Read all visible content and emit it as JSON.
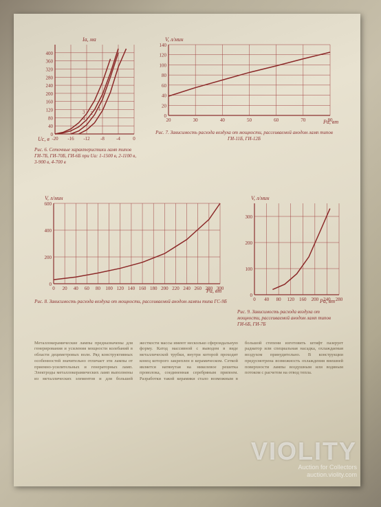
{
  "fig6": {
    "type": "line-multi",
    "y_label": "Ia, ма",
    "x_label": "Uc, в",
    "x_ticks": [
      -20,
      -16,
      -12,
      -8,
      -4,
      0
    ],
    "y_ticks": [
      0,
      40,
      80,
      120,
      160,
      200,
      240,
      280,
      320,
      360,
      400
    ],
    "y_max": 440,
    "curves": [
      {
        "label": "1",
        "pts": [
          [
            -14,
            0
          ],
          [
            -12,
            20
          ],
          [
            -10,
            55
          ],
          [
            -8,
            115
          ],
          [
            -6,
            205
          ],
          [
            -4,
            330
          ],
          [
            -2,
            420
          ]
        ]
      },
      {
        "label": "2",
        "pts": [
          [
            -16,
            0
          ],
          [
            -14,
            15
          ],
          [
            -12,
            45
          ],
          [
            -10,
            95
          ],
          [
            -8,
            170
          ],
          [
            -6,
            280
          ],
          [
            -4,
            400
          ]
        ]
      },
      {
        "label": "3",
        "pts": [
          [
            -20,
            0
          ],
          [
            -18,
            8
          ],
          [
            -16,
            25
          ],
          [
            -14,
            55
          ],
          [
            -12,
            100
          ],
          [
            -10,
            165
          ],
          [
            -8,
            255
          ],
          [
            -6,
            370
          ]
        ]
      },
      {
        "label": "4",
        "pts": [
          [
            -20,
            0
          ],
          [
            -18,
            5
          ],
          [
            -16,
            15
          ],
          [
            -14,
            35
          ],
          [
            -12,
            70
          ],
          [
            -10,
            120
          ],
          [
            -8,
            195
          ],
          [
            -6,
            300
          ],
          [
            -4,
            420
          ]
        ]
      }
    ],
    "caption": "Рис. 6. Сеточные характеристики ламп типов ГИ-7Б, ГИ-70Б, ГИ-6Б при Ua: 1-1500 в, 2-1100 в, 3-900 в, 4-700 в",
    "colors": {
      "grid": "#a04040",
      "curve": "#8b2828",
      "axis": "#8b3030"
    }
  },
  "fig7": {
    "type": "line",
    "y_label": "V, л/мин",
    "x_label": "Pa, вт",
    "x_ticks": [
      20,
      30,
      40,
      50,
      60,
      70,
      80
    ],
    "y_ticks": [
      0,
      20,
      40,
      60,
      80,
      100,
      120,
      140
    ],
    "pts": [
      [
        20,
        38
      ],
      [
        30,
        55
      ],
      [
        40,
        70
      ],
      [
        50,
        85
      ],
      [
        60,
        98
      ],
      [
        70,
        112
      ],
      [
        80,
        125
      ]
    ],
    "caption": "Рис. 7. Зависимость расхода воздуха от мощности, рассеиваемой анодом ламп типов ГИ-11Б, ГИ-12Б",
    "colors": {
      "grid": "#a04040",
      "curve": "#8b2828",
      "axis": "#8b3030"
    }
  },
  "fig8": {
    "type": "line",
    "y_label": "V, л/мин",
    "x_label": "Pa, вт",
    "x_ticks": [
      0,
      20,
      40,
      60,
      80,
      100,
      120,
      140,
      160,
      180,
      200,
      220,
      240,
      260,
      280,
      300
    ],
    "y_ticks": [
      0,
      200,
      400,
      600
    ],
    "pts": [
      [
        0,
        30
      ],
      [
        40,
        50
      ],
      [
        80,
        80
      ],
      [
        120,
        115
      ],
      [
        160,
        160
      ],
      [
        200,
        225
      ],
      [
        240,
        330
      ],
      [
        280,
        480
      ],
      [
        300,
        600
      ]
    ],
    "caption": "Рис. 8. Зависимость расхода воздуха от мощности, рассеиваемой анодом лампы типа ГС-9Б",
    "colors": {
      "grid": "#a04040",
      "curve": "#8b2828",
      "axis": "#8b3030"
    }
  },
  "fig9": {
    "type": "line",
    "y_label": "V, л/мин",
    "x_label": "Pa, вт",
    "x_ticks": [
      0,
      40,
      80,
      120,
      160,
      200,
      240,
      280
    ],
    "y_ticks": [
      0,
      100,
      200,
      300
    ],
    "pts": [
      [
        60,
        20
      ],
      [
        100,
        40
      ],
      [
        140,
        80
      ],
      [
        180,
        145
      ],
      [
        220,
        250
      ],
      [
        250,
        330
      ]
    ],
    "caption": "Рис. 9. Зависимость расхода воздуха от мощности, рассеиваемой анодом ламп типов ГИ-6Б, ГИ-7Б",
    "colors": {
      "grid": "#a04040",
      "curve": "#8b2828",
      "axis": "#8b3030"
    }
  },
  "body": "Металлокерамические лампы предназначены для генерирования и усиления мощности колебаний в области дециметровых волн. Ряд конструктивных особенностей значительно отличает эти лампы от приемно-усилительных и генераторных ламп. Электроды металлокерамических ламп выполнены из металлических элементов и для большей жесткости массы имеют несколько сфероидальную форму. Катод массивной с выводом в виде металлической трубки, внутри которой проходит конец которого закреплен в керамическом. Сеткой является натянутая на никелевое решетка проволока, соединенная серебряным припоем. Разработки такой керамики стало возможным в большой степени изготовить штифт пазерует радиатор или специальная насадка, охлаждаемая воздухом принудительно. В конструкции предусмотрена возможность охлаждения внешней поверхности лампы воздушным или водяным потоком с расчетом на отвод тепла.",
  "watermark": {
    "brand": "VIOLITY",
    "sub1": "Auction for Collectors",
    "sub2": "auction.violity.com"
  }
}
